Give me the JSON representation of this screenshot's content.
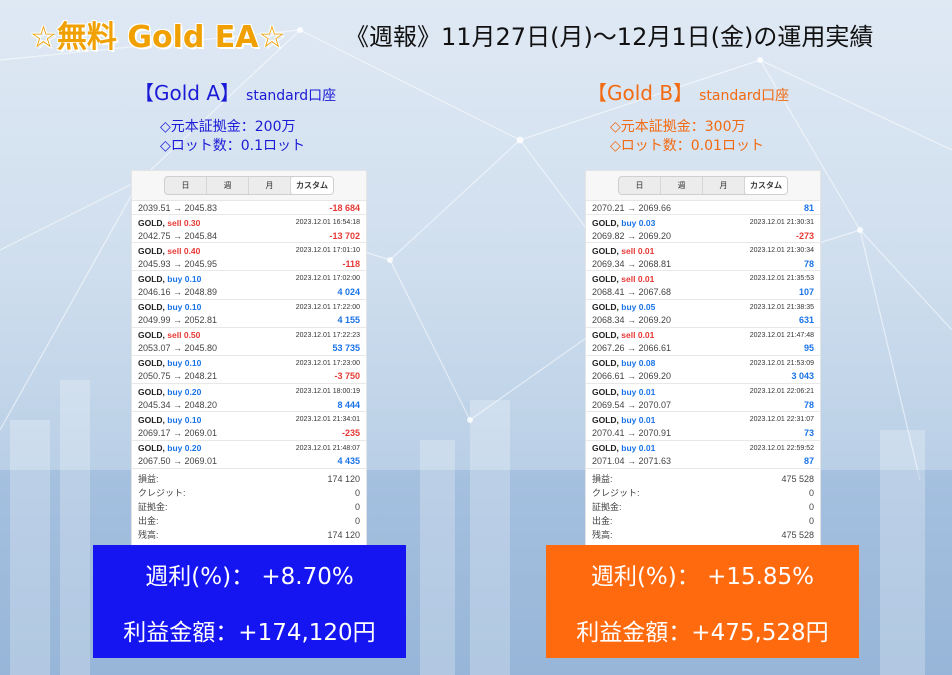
{
  "header": {
    "title": "☆無料 Gold EA☆",
    "subtitle": "《週報》11月27日(月)～12月1日(金)の運用実績"
  },
  "colors": {
    "gold_a": "#1515f2",
    "gold_b": "#ff6a0f",
    "buy": "#1a73e8",
    "sell": "#e53935"
  },
  "accounts": [
    {
      "name": "【Gold A】",
      "type": "standard口座",
      "margin": "◇元本証拠金：200万",
      "lot": "◇ロット数：0.1ロット",
      "tabs": [
        "日",
        "週",
        "月",
        "カスタム"
      ],
      "first": {
        "prices": "2039.51 → 2045.83",
        "profit": "-18 684"
      },
      "trades": [
        {
          "symbol": "GOLD,",
          "side": "sell 0.30",
          "time": "2023.12.01 16:54:18",
          "prices": "2042.75 → 2045.84",
          "profit": "-13 702"
        },
        {
          "symbol": "GOLD,",
          "side": "sell 0.40",
          "time": "2023.12.01 17:01:10",
          "prices": "2045.93 → 2045.95",
          "profit": "-118"
        },
        {
          "symbol": "GOLD,",
          "side": "buy 0.10",
          "time": "2023.12.01 17:02:00",
          "prices": "2046.16 → 2048.89",
          "profit": "4 024"
        },
        {
          "symbol": "GOLD,",
          "side": "buy 0.10",
          "time": "2023.12.01 17:22:00",
          "prices": "2049.99 → 2052.81",
          "profit": "4 155"
        },
        {
          "symbol": "GOLD,",
          "side": "sell 0.50",
          "time": "2023.12.01 17:22:23",
          "prices": "2053.07 → 2045.80",
          "profit": "53 735"
        },
        {
          "symbol": "GOLD,",
          "side": "buy 0.10",
          "time": "2023.12.01 17:23:00",
          "prices": "2050.75 → 2048.21",
          "profit": "-3 750"
        },
        {
          "symbol": "GOLD,",
          "side": "buy 0.20",
          "time": "2023.12.01 18:00:19",
          "prices": "2045.34 → 2048.20",
          "profit": "8 444"
        },
        {
          "symbol": "GOLD,",
          "side": "buy 0.10",
          "time": "2023.12.01 21:34:01",
          "prices": "2069.17 → 2069.01",
          "profit": "-235"
        },
        {
          "symbol": "GOLD,",
          "side": "buy 0.20",
          "time": "2023.12.01 21:48:07",
          "prices": "2067.50 → 2069.01",
          "profit": "4 435"
        }
      ],
      "summary": [
        {
          "label": "損益:",
          "value": "174 120"
        },
        {
          "label": "クレジット:",
          "value": "0"
        },
        {
          "label": "証拠金:",
          "value": "0"
        },
        {
          "label": "出金:",
          "value": "0"
        },
        {
          "label": "残高:",
          "value": "174 120"
        }
      ],
      "weekly_rate": "週利(%)：  +8.70%",
      "profit_amount": "利益金額：+174,120円"
    },
    {
      "name": "【Gold B】",
      "type": "standard口座",
      "margin": "◇元本証拠金：300万",
      "lot": "◇ロット数：0.01ロット",
      "tabs": [
        "日",
        "週",
        "月",
        "カスタム"
      ],
      "first": {
        "prices": "2070.21 → 2069.66",
        "profit": "81"
      },
      "trades": [
        {
          "symbol": "GOLD,",
          "side": "buy 0.03",
          "time": "2023.12.01 21:30:31",
          "prices": "2069.82 → 2069.20",
          "profit": "-273"
        },
        {
          "symbol": "GOLD,",
          "side": "sell 0.01",
          "time": "2023.12.01 21:30:34",
          "prices": "2069.34 → 2068.81",
          "profit": "78"
        },
        {
          "symbol": "GOLD,",
          "side": "sell 0.01",
          "time": "2023.12.01 21:35:53",
          "prices": "2068.41 → 2067.68",
          "profit": "107"
        },
        {
          "symbol": "GOLD,",
          "side": "buy 0.05",
          "time": "2023.12.01 21:38:35",
          "prices": "2068.34 → 2069.20",
          "profit": "631"
        },
        {
          "symbol": "GOLD,",
          "side": "sell 0.01",
          "time": "2023.12.01 21:47:48",
          "prices": "2067.26 → 2066.61",
          "profit": "95"
        },
        {
          "symbol": "GOLD,",
          "side": "buy 0.08",
          "time": "2023.12.01 21:53:09",
          "prices": "2066.61 → 2069.20",
          "profit": "3 043"
        },
        {
          "symbol": "GOLD,",
          "side": "buy 0.01",
          "time": "2023.12.01 22:06:21",
          "prices": "2069.54 → 2070.07",
          "profit": "78"
        },
        {
          "symbol": "GOLD,",
          "side": "buy 0.01",
          "time": "2023.12.01 22:31:07",
          "prices": "2070.41 → 2070.91",
          "profit": "73"
        },
        {
          "symbol": "GOLD,",
          "side": "buy 0.01",
          "time": "2023.12.01 22:59:52",
          "prices": "2071.04 → 2071.63",
          "profit": "87"
        }
      ],
      "summary": [
        {
          "label": "損益:",
          "value": "475 528"
        },
        {
          "label": "クレジット:",
          "value": "0"
        },
        {
          "label": "証拠金:",
          "value": "0"
        },
        {
          "label": "出金:",
          "value": "0"
        },
        {
          "label": "残高:",
          "value": "475 528"
        }
      ],
      "weekly_rate": "週利(%)：  +15.85%",
      "profit_amount": "利益金額：+475,528円"
    }
  ]
}
